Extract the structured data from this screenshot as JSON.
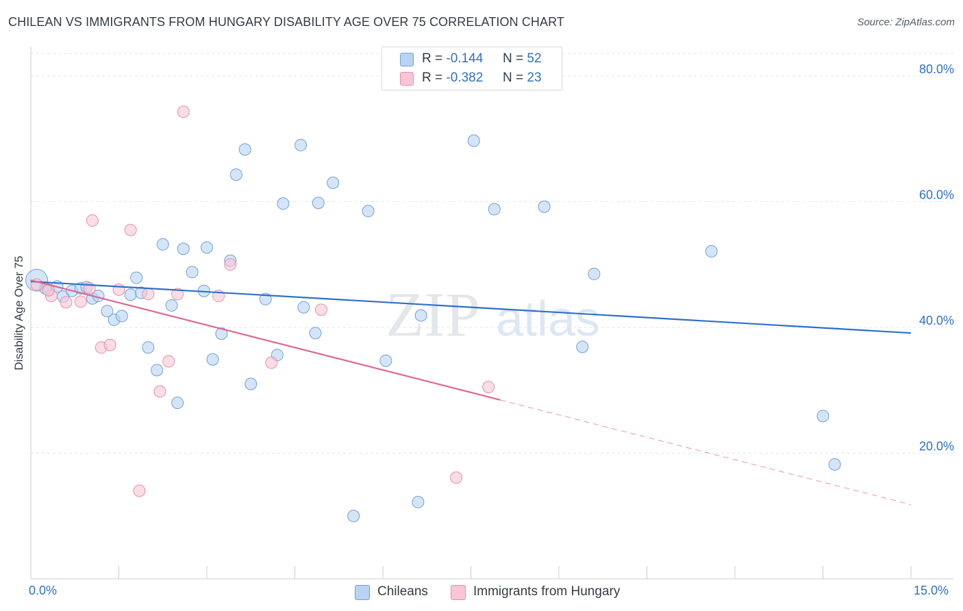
{
  "title": "CHILEAN VS IMMIGRANTS FROM HUNGARY DISABILITY AGE OVER 75 CORRELATION CHART",
  "source": "Source: ZipAtlas.com",
  "watermark": {
    "zip": "ZIP",
    "atlas": "atlas"
  },
  "legend_top": [
    {
      "r_label": "R =",
      "r_value": "-0.144",
      "n_label": "N =",
      "n_value": "52",
      "fill": "#b9d3f3",
      "stroke": "#6f9fd8"
    },
    {
      "r_label": "R =",
      "r_value": "-0.382",
      "n_label": "N =",
      "n_value": "23",
      "fill": "#f9c6d6",
      "stroke": "#e58fab"
    }
  ],
  "legend_bottom": [
    {
      "label": "Chileans",
      "fill": "#b9d3f3",
      "stroke": "#6f9fd8"
    },
    {
      "label": "Immigrants from Hungary",
      "fill": "#f9c6d6",
      "stroke": "#e58fab"
    }
  ],
  "x_axis_labels": {
    "min": "0.0%",
    "max": "15.0%"
  },
  "chart_data": {
    "type": "scatter",
    "title": "CHILEAN VS IMMIGRANTS FROM HUNGARY DISABILITY AGE OVER 75 CORRELATION CHART",
    "xlabel": "",
    "ylabel": "Disability Age Over 75",
    "xlim": [
      0,
      15
    ],
    "ylim": [
      0,
      85
    ],
    "y_ticks": [
      {
        "value": 20,
        "label": "20.0%"
      },
      {
        "value": 40,
        "label": "40.0%"
      },
      {
        "value": 60,
        "label": "60.0%"
      },
      {
        "value": 80,
        "label": "80.0%"
      }
    ],
    "x_ticks": [
      0,
      1.5,
      3,
      4.5,
      6,
      7.5,
      9,
      10.5,
      12,
      13.5,
      15
    ],
    "grid": true,
    "series": [
      {
        "name": "Chileans",
        "color": "#b9d3f3",
        "stroke": "#6f9fd8",
        "line_color": "#2e6fc8",
        "trend": {
          "x0": 0,
          "y0": 47.3,
          "x1": 15,
          "y1": 39.1,
          "solid_to": 15
        },
        "points": [
          [
            0.1,
            47.5
          ],
          [
            0.3,
            46.0
          ],
          [
            0.45,
            46.5
          ],
          [
            0.55,
            44.9
          ],
          [
            0.7,
            45.8
          ],
          [
            0.85,
            46.2
          ],
          [
            0.95,
            46.4
          ],
          [
            1.05,
            44.6
          ],
          [
            1.15,
            45.0
          ],
          [
            1.3,
            42.6
          ],
          [
            1.42,
            41.2
          ],
          [
            1.55,
            41.8
          ],
          [
            1.7,
            45.2
          ],
          [
            1.8,
            47.9
          ],
          [
            1.88,
            45.5
          ],
          [
            2.0,
            36.8
          ],
          [
            2.15,
            33.2
          ],
          [
            2.25,
            53.2
          ],
          [
            2.4,
            43.5
          ],
          [
            2.5,
            28.0
          ],
          [
            2.6,
            52.5
          ],
          [
            2.75,
            48.8
          ],
          [
            2.95,
            45.8
          ],
          [
            3.0,
            52.7
          ],
          [
            3.1,
            34.9
          ],
          [
            3.25,
            39.0
          ],
          [
            3.4,
            50.6
          ],
          [
            3.5,
            64.3
          ],
          [
            3.65,
            68.3
          ],
          [
            3.75,
            31.0
          ],
          [
            4.0,
            44.5
          ],
          [
            4.2,
            35.6
          ],
          [
            4.3,
            59.7
          ],
          [
            4.6,
            69.0
          ],
          [
            4.65,
            43.2
          ],
          [
            4.85,
            39.1
          ],
          [
            4.9,
            59.8
          ],
          [
            5.15,
            63.0
          ],
          [
            5.5,
            10.0
          ],
          [
            5.75,
            58.5
          ],
          [
            6.05,
            34.7
          ],
          [
            6.6,
            12.2
          ],
          [
            6.65,
            41.9
          ],
          [
            7.55,
            69.7
          ],
          [
            7.9,
            58.8
          ],
          [
            8.75,
            59.2
          ],
          [
            9.4,
            36.9
          ],
          [
            9.6,
            48.5
          ],
          [
            11.6,
            52.1
          ],
          [
            13.5,
            25.9
          ],
          [
            13.7,
            18.2
          ],
          [
            0.25,
            46.2
          ]
        ]
      },
      {
        "name": "Immigrants from Hungary",
        "color": "#f9c6d6",
        "stroke": "#e58fab",
        "line_color": "#e06592",
        "trend": {
          "x0": 0,
          "y0": 47.5,
          "x1": 15,
          "y1": 11.8,
          "solid_to": 8.0
        },
        "points": [
          [
            0.1,
            46.8
          ],
          [
            0.35,
            45.0
          ],
          [
            0.6,
            44.0
          ],
          [
            0.85,
            44.1
          ],
          [
            1.0,
            46.2
          ],
          [
            1.05,
            57.0
          ],
          [
            1.2,
            36.8
          ],
          [
            1.35,
            37.2
          ],
          [
            1.5,
            46.0
          ],
          [
            1.7,
            55.5
          ],
          [
            1.85,
            14.0
          ],
          [
            2.0,
            45.3
          ],
          [
            2.2,
            29.8
          ],
          [
            2.35,
            34.6
          ],
          [
            2.5,
            45.3
          ],
          [
            2.6,
            74.3
          ],
          [
            3.2,
            45.0
          ],
          [
            3.4,
            50.0
          ],
          [
            4.1,
            34.4
          ],
          [
            4.95,
            42.8
          ],
          [
            7.25,
            16.1
          ],
          [
            7.8,
            30.5
          ],
          [
            0.3,
            45.9
          ]
        ]
      }
    ]
  }
}
